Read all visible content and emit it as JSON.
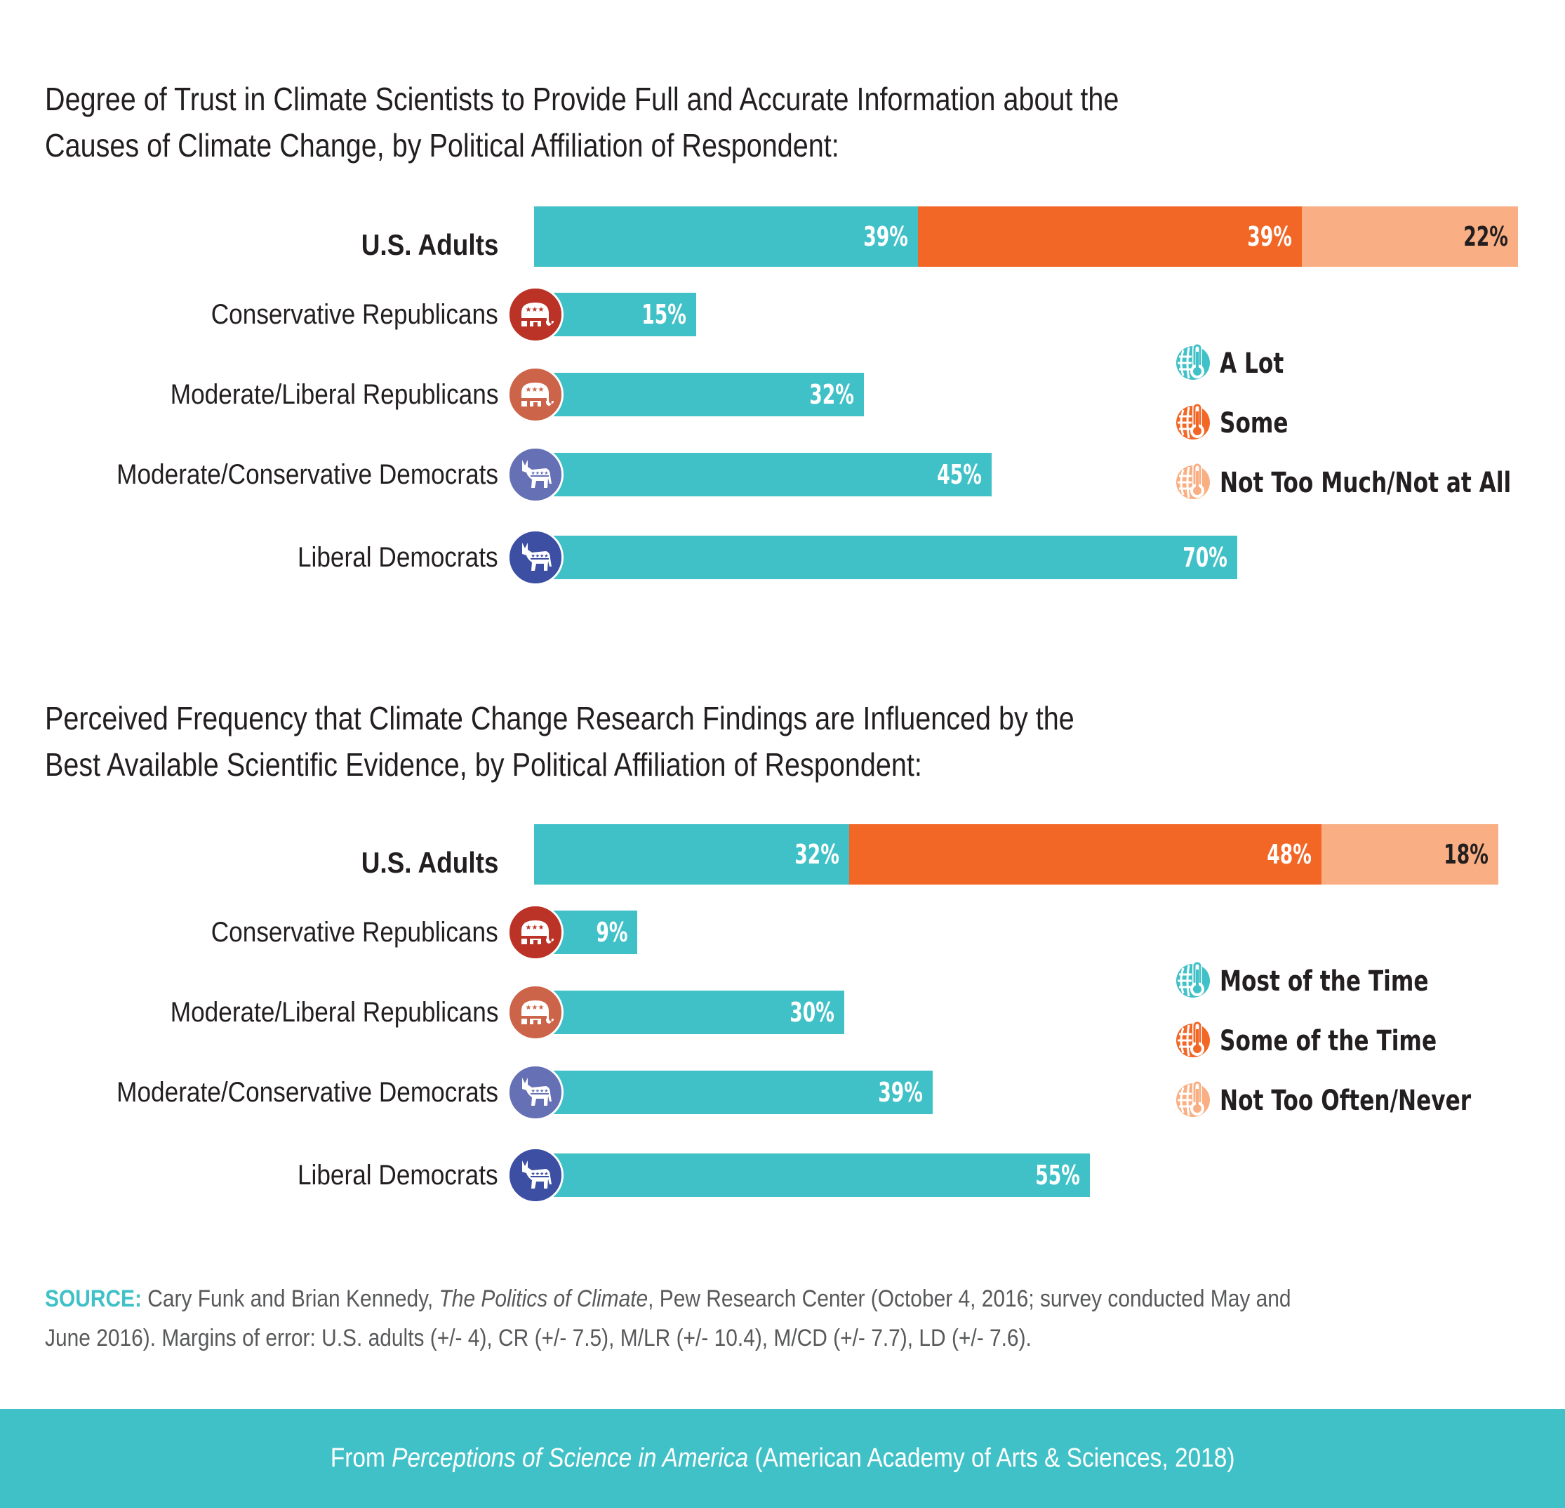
{
  "colors": {
    "a_lot": "#40c1c7",
    "some": "#f26626",
    "not_much": "#f9af83",
    "cons_rep": "#bb3327",
    "mod_rep": "#cc6449",
    "mod_dem": "#6670b5",
    "lib_dem": "#3c4fa3",
    "source_label": "#40c1c7",
    "footer_bg": "#40c1c7"
  },
  "chart_data": [
    {
      "type": "bar",
      "orientation": "horizontal",
      "title": "Degree of Trust in Climate Scientists to Provide Full and Accurate Information about the Causes of Climate Change, by Political Affiliation of Respondent:",
      "title_lines": [
        "Degree of Trust in Climate Scientists to Provide Full and Accurate Information about the",
        "Causes of Climate Change, by Political Affiliation of Respondent:"
      ],
      "xlim": [
        0,
        100
      ],
      "grid": false,
      "legend_position": "right",
      "legend": [
        "A Lot",
        "Some",
        "Not Too Much/Not at All"
      ],
      "total": {
        "label": "U.S. Adults",
        "segments": [
          {
            "name": "A Lot",
            "value": 39,
            "label": "39%"
          },
          {
            "name": "Some",
            "value": 39,
            "label": "39%"
          },
          {
            "name": "Not Too Much/Not at All",
            "value": 22,
            "label": "22%"
          }
        ]
      },
      "categories": [
        "Conservative Republicans",
        "Moderate/Liberal Republicans",
        "Moderate/Conservative Democrats",
        "Liberal Democrats"
      ],
      "series": [
        {
          "name": "A Lot",
          "values": [
            15,
            32,
            45,
            70
          ],
          "labels": [
            "15%",
            "32%",
            "45%",
            "70%"
          ]
        }
      ]
    },
    {
      "type": "bar",
      "orientation": "horizontal",
      "title": "Perceived Frequency that Climate Change Research Findings are Influenced by the Best Available Scientific Evidence, by Political Affiliation of Respondent:",
      "title_lines": [
        "Perceived Frequency that Climate Change Research Findings are Influenced by the",
        "Best Available Scientific Evidence, by Political Affiliation of Respondent:"
      ],
      "xlim": [
        0,
        100
      ],
      "grid": false,
      "legend_position": "right",
      "legend": [
        "Most of the Time",
        "Some of the Time",
        "Not Too Often/Never"
      ],
      "total": {
        "label": "U.S. Adults",
        "segments": [
          {
            "name": "Most of the Time",
            "value": 32,
            "label": "32%"
          },
          {
            "name": "Some of the Time",
            "value": 48,
            "label": "48%"
          },
          {
            "name": "Not Too Often/Never",
            "value": 18,
            "label": "18%"
          }
        ]
      },
      "categories": [
        "Conservative Republicans",
        "Moderate/Liberal Republicans",
        "Moderate/Conservative Democrats",
        "Liberal Democrats"
      ],
      "series": [
        {
          "name": "Most of the Time",
          "values": [
            9,
            30,
            39,
            55
          ],
          "labels": [
            "9%",
            "30%",
            "39%",
            "55%"
          ]
        }
      ]
    }
  ],
  "row_icons": [
    "elephant-icon",
    "elephant-icon",
    "donkey-icon",
    "donkey-icon"
  ],
  "source": {
    "label": "SOURCE:",
    "authors": " Cary Funk and Brian Kennedy, ",
    "work": "The Politics of Climate",
    "rest": ", Pew Research Center (October 4, 2016; survey conducted May and June 2016). Margins of error: U.S. adults (+/- 4), CR (+/- 7.5), M/LR (+/- 10.4), M/CD (+/- 7.7), LD (+/- 7.6)."
  },
  "footer": {
    "prefix": "From ",
    "work": "Perceptions of Science in America",
    "suffix": " (American Academy of Arts & Sciences, 2018)"
  }
}
